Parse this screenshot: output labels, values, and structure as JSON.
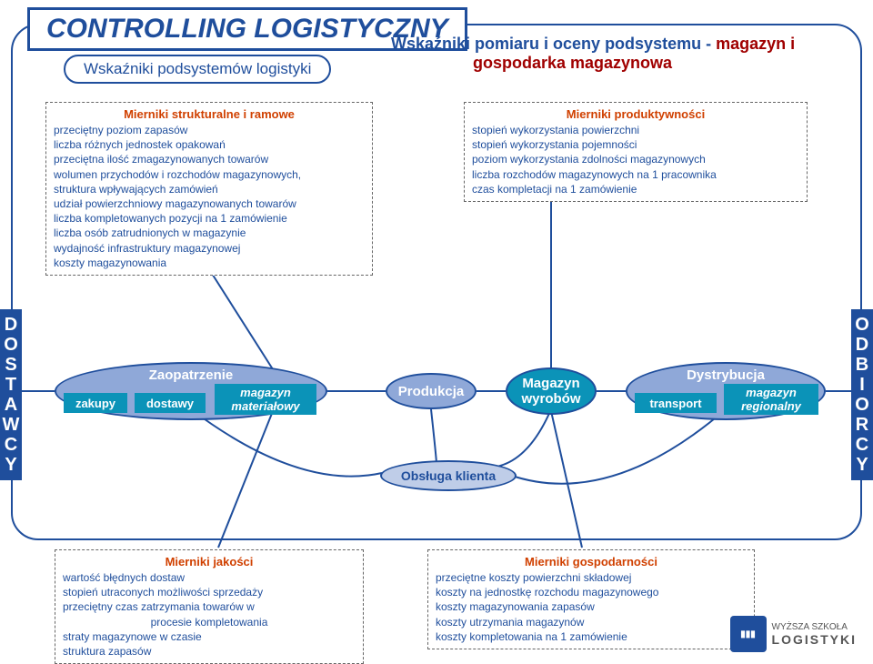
{
  "colors": {
    "primary": "#1f4e9c",
    "accent": "#d04000",
    "danger": "#a00000",
    "oval_fill": "#8fa8d8",
    "oval_stroke": "#1f4e9c",
    "rect_fill": "#0b93b8",
    "obs_fill": "#bfcde8",
    "connector": "#1f4e9c"
  },
  "title": "CONTROLLING  LOGISTYCZNY",
  "subtitle": "Wskaźniki podsystemów logistyki",
  "header_right_1": "Wskaźniki pomiaru i oceny podsystemu  -",
  "header_right_2": " magazyn i",
  "header_right_3": "gospodarka magazynowa",
  "sidebar_left": "DOSTAWCY",
  "sidebar_right": "ODBIORCY",
  "boxes": {
    "strukt": {
      "title": "Mierniki  strukturalne i ramowe",
      "lines": [
        "przeciętny poziom  zapasów",
        "liczba różnych jednostek opakowań",
        "przeciętna ilość zmagazynowanych towarów",
        "wolumen  przychodów i rozchodów magazynowych,",
        "struktura wpływających zamówień",
        "udział powierzchniowy magazynowanych towarów",
        "liczba kompletowanych pozycji na 1 zamówienie",
        "liczba osób zatrudnionych w magazynie",
        "wydajność infrastruktury magazynowej",
        "koszty magazynowania"
      ]
    },
    "produkt": {
      "title": "Mierniki  produktywności",
      "lines": [
        "stopień wykorzystania powierzchni",
        "stopień wykorzystania pojemności",
        "poziom wykorzystania zdolności magazynowych",
        "liczba rozchodów magazynowych na 1 pracownika",
        "czas kompletacji na 1 zamówienie"
      ]
    },
    "jakosc": {
      "title": "Mierniki jakości",
      "lines": [
        "wartość błędnych dostaw",
        "stopień utraconych możliwości sprzedaży",
        "przeciętny czas zatrzymania towarów w",
        "procesie kompletowania",
        "straty magazynowe w czasie",
        "struktura zapasów"
      ]
    },
    "gospod": {
      "title": "Mierniki gospodarności",
      "lines": [
        "przeciętne koszty powierzchni składowej",
        "koszty na jednostkę rozchodu magazynowego",
        "koszty magazynowania zapasów",
        "koszty utrzymania magazynów",
        "koszty kompletowania na 1 zamówienie"
      ]
    }
  },
  "flow": {
    "zaopatrzenie": "Zaopatrzenie",
    "zakupy": "zakupy",
    "dostawy": "dostawy",
    "magazyn_mat_1": "magazyn",
    "magazyn_mat_2": "materiałowy",
    "produkcja": "Produkcja",
    "magazyn_wyr_1": "Magazyn",
    "magazyn_wyr_2": "wyrobów",
    "dystrybucja": "Dystrybucja",
    "transport": "transport",
    "magazyn_reg_1": "magazyn",
    "magazyn_reg_2": "regionalny",
    "obsluga": "Obsługa klienta"
  },
  "logo": {
    "top": "WYŻSZA SZKOŁA",
    "bottom": "LOGISTYKI"
  }
}
